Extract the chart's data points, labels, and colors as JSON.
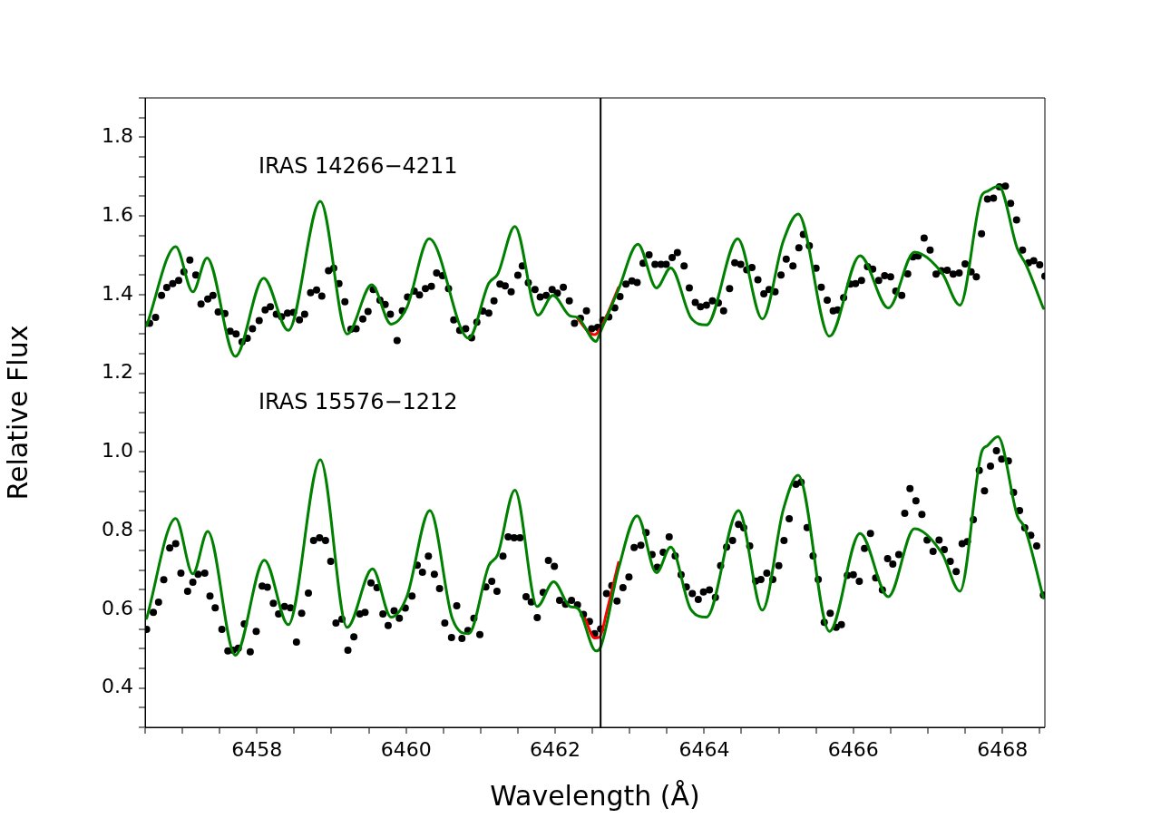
{
  "chart_data": {
    "type": "scatter",
    "xlabel": "Wavelength (Å)",
    "ylabel": "Relative Flux",
    "xlim": [
      6456.5,
      6468.57
    ],
    "ylim": [
      0.3,
      1.9
    ],
    "grid": false,
    "xticks": [
      {
        "value": 6456.5,
        "label": null
      },
      {
        "value": 6457,
        "label": null
      },
      {
        "value": 6457.5,
        "label": null
      },
      6458,
      {
        "value": 6458.5,
        "label": null
      },
      {
        "value": 6459,
        "label": null
      },
      {
        "value": 6459.5,
        "label": null
      },
      6460,
      {
        "value": 6460.5,
        "label": null
      },
      {
        "value": 6461,
        "label": null
      },
      {
        "value": 6461.5,
        "label": null
      },
      6462,
      {
        "value": 6462.5,
        "label": null
      },
      {
        "value": 6463,
        "label": null
      },
      {
        "value": 6463.5,
        "label": null
      },
      6464,
      {
        "value": 6464.5,
        "label": null
      },
      {
        "value": 6465,
        "label": null
      },
      {
        "value": 6465.5,
        "label": null
      },
      6466,
      {
        "value": 6466.5,
        "label": null
      },
      {
        "value": 6467,
        "label": null
      },
      {
        "value": 6467.5,
        "label": null
      },
      6468,
      {
        "value": 6468.5,
        "label": null
      }
    ],
    "yticks": [
      {
        "value": 0.3,
        "label": null
      },
      {
        "value": 0.35,
        "label": null
      },
      0.4,
      {
        "value": 0.45,
        "label": null
      },
      {
        "value": 0.5,
        "label": null
      },
      {
        "value": 0.55,
        "label": null
      },
      0.6,
      {
        "value": 0.65,
        "label": null
      },
      {
        "value": 0.7,
        "label": null
      },
      {
        "value": 0.75,
        "label": null
      },
      0.8,
      {
        "value": 0.85,
        "label": null
      },
      {
        "value": 0.9,
        "label": null
      },
      {
        "value": 0.95,
        "label": null
      },
      {
        "value": 1,
        "label": "1.0"
      },
      {
        "value": 1.05,
        "label": null
      },
      {
        "value": 1.1,
        "label": null
      },
      {
        "value": 1.15,
        "label": null
      },
      1.2,
      {
        "value": 1.25,
        "label": null
      },
      {
        "value": 1.3,
        "label": null
      },
      {
        "value": 1.35,
        "label": null
      },
      1.4,
      {
        "value": 1.45,
        "label": null
      },
      {
        "value": 1.5,
        "label": null
      },
      {
        "value": 1.55,
        "label": null
      },
      1.6,
      {
        "value": 1.65,
        "label": null
      },
      {
        "value": 1.7,
        "label": null
      },
      {
        "value": 1.75,
        "label": null
      },
      1.8,
      {
        "value": 1.85,
        "label": null
      },
      {
        "value": 1.9,
        "label": null
      }
    ],
    "ref_lines": [
      {
        "axis": "x",
        "value": 6462.61,
        "color": "#000000"
      }
    ],
    "annotations": [
      "IRAS 14266−4211",
      "IRAS 15576−1212"
    ],
    "series": [
      {
        "marker": "circle",
        "color": "#000000",
        "x": [
          6456.56,
          6456.64,
          6456.72,
          6456.79,
          6456.87,
          6456.95,
          6457.02,
          6457.1,
          6457.18,
          6457.25,
          6457.34,
          6457.41,
          6457.48,
          6457.57,
          6457.64,
          6457.72,
          6457.8,
          6457.87,
          6457.94,
          6458.03,
          6458.11,
          6458.18,
          6458.26,
          6458.33,
          6458.41,
          6458.49,
          6458.57,
          6458.64,
          6458.72,
          6458.8,
          6458.87,
          6458.96,
          6459.03,
          6459.1,
          6459.18,
          6459.26,
          6459.33,
          6459.42,
          6459.49,
          6459.56,
          6459.65,
          6459.72,
          6459.79,
          6459.88,
          6459.95,
          6460.02,
          6460.11,
          6460.18,
          6460.26,
          6460.34,
          6460.41,
          6460.49,
          6460.57,
          6460.64,
          6460.72,
          6460.8,
          6460.88,
          6460.95,
          6461.03,
          6461.11,
          6461.18,
          6461.26,
          6461.33,
          6461.41,
          6461.5,
          6461.56,
          6461.64,
          6461.73,
          6461.8,
          6461.88,
          6461.96,
          6462.03,
          6462.11,
          6462.19,
          6462.26,
          6462.34,
          6462.42,
          6462.49,
          6462.57,
          6462.64,
          6462.72,
          6462.8,
          6462.87,
          6462.95,
          6463.03,
          6463.1,
          6463.18,
          6463.26,
          6463.34,
          6463.42,
          6463.49,
          6463.57,
          6463.64,
          6463.73,
          6463.8,
          6463.88,
          6463.95,
          6464.03,
          6464.11,
          6464.19,
          6464.26,
          6464.34,
          6464.41,
          6464.49,
          6464.57,
          6464.64,
          6464.72,
          6464.8,
          6464.87,
          6464.95,
          6465.03,
          6465.1,
          6465.19,
          6465.27,
          6465.33,
          6465.41,
          6465.5,
          6465.57,
          6465.65,
          6465.73,
          6465.79,
          6465.87,
          6465.96,
          6466.03,
          6466.11,
          6466.19,
          6466.26,
          6466.34,
          6466.42,
          6466.5,
          6466.57,
          6466.65,
          6466.73,
          6466.8,
          6466.87,
          6466.95,
          6467.03,
          6467.11,
          6467.18,
          6467.26,
          6467.34,
          6467.42,
          6467.5,
          6467.58,
          6467.65,
          6467.72,
          6467.8,
          6467.88,
          6467.96,
          6468.04,
          6468.11,
          6468.19,
          6468.27,
          6468.35,
          6468.42,
          6468.5,
          6468.57
        ],
        "values": [
          1.327,
          1.342,
          1.398,
          1.418,
          1.428,
          1.436,
          1.458,
          1.488,
          1.45,
          1.376,
          1.389,
          1.398,
          1.356,
          1.352,
          1.307,
          1.3,
          1.28,
          1.289,
          1.313,
          1.334,
          1.361,
          1.369,
          1.35,
          1.344,
          1.353,
          1.355,
          1.336,
          1.35,
          1.405,
          1.412,
          1.396,
          1.461,
          1.467,
          1.428,
          1.382,
          1.312,
          1.313,
          1.338,
          1.357,
          1.413,
          1.386,
          1.375,
          1.35,
          1.283,
          1.359,
          1.394,
          1.409,
          1.399,
          1.415,
          1.421,
          1.455,
          1.448,
          1.415,
          1.336,
          1.309,
          1.313,
          1.29,
          1.33,
          1.358,
          1.353,
          1.384,
          1.427,
          1.422,
          1.407,
          1.449,
          1.473,
          1.43,
          1.413,
          1.394,
          1.398,
          1.413,
          1.404,
          1.419,
          1.384,
          1.327,
          1.34,
          1.359,
          1.313,
          1.317,
          1.335,
          1.343,
          1.366,
          1.395,
          1.427,
          1.435,
          1.431,
          1.48,
          1.501,
          1.477,
          1.477,
          1.477,
          1.494,
          1.507,
          1.473,
          1.417,
          1.38,
          1.369,
          1.373,
          1.384,
          1.379,
          1.359,
          1.415,
          1.481,
          1.477,
          1.463,
          1.469,
          1.438,
          1.402,
          1.413,
          1.407,
          1.45,
          1.49,
          1.473,
          1.519,
          1.553,
          1.524,
          1.467,
          1.419,
          1.386,
          1.359,
          1.361,
          1.392,
          1.427,
          1.428,
          1.436,
          1.471,
          1.465,
          1.436,
          1.448,
          1.445,
          1.409,
          1.398,
          1.453,
          1.496,
          1.498,
          1.544,
          1.513,
          1.452,
          1.461,
          1.462,
          1.452,
          1.455,
          1.478,
          1.458,
          1.445,
          1.555,
          1.643,
          1.645,
          1.674,
          1.676,
          1.632,
          1.59,
          1.513,
          1.481,
          1.486,
          1.476,
          1.447
        ]
      },
      {
        "type": "line",
        "color": "#ff0000",
        "x": [
          6462.3,
          6462.45,
          6462.53,
          6462.6,
          6462.7,
          6462.85
        ],
        "values": [
          1.34,
          1.305,
          1.298,
          1.312,
          1.35,
          1.418
        ]
      },
      {
        "type": "line",
        "color": "#008000",
        "x": [
          6456.52,
          6456.91,
          6457.14,
          6457.33,
          6457.71,
          6458.09,
          6458.42,
          6458.85,
          6459.21,
          6459.54,
          6459.8,
          6460.01,
          6460.31,
          6460.84,
          6461.11,
          6461.23,
          6461.46,
          6461.77,
          6461.97,
          6462.2,
          6462.3,
          6462.55,
          6462.6,
          6462.85,
          6463.11,
          6463.36,
          6463.55,
          6463.82,
          6464.03,
          6464.45,
          6464.78,
          6465.06,
          6465.26,
          6465.68,
          6466.09,
          6466.47,
          6466.82,
          6467.19,
          6467.43,
          6467.72,
          6467.8,
          6467.95,
          6468.2,
          6468.32,
          6468.55
        ],
        "values": [
          1.321,
          1.522,
          1.407,
          1.493,
          1.243,
          1.442,
          1.309,
          1.637,
          1.3,
          1.425,
          1.325,
          1.367,
          1.542,
          1.289,
          1.429,
          1.452,
          1.573,
          1.348,
          1.398,
          1.346,
          1.342,
          1.281,
          1.302,
          1.413,
          1.528,
          1.417,
          1.468,
          1.342,
          1.323,
          1.542,
          1.338,
          1.536,
          1.605,
          1.294,
          1.499,
          1.366,
          1.508,
          1.455,
          1.373,
          1.651,
          1.663,
          1.676,
          1.517,
          1.475,
          1.365
        ]
      },
      {
        "marker": "circle",
        "color": "#000000",
        "x": [
          6456.52,
          6456.61,
          6456.68,
          6456.75,
          6456.83,
          6456.91,
          6456.98,
          6457.07,
          6457.14,
          6457.21,
          6457.3,
          6457.37,
          6457.44,
          6457.53,
          6457.61,
          6457.68,
          6457.75,
          6457.83,
          6457.91,
          6457.99,
          6458.07,
          6458.14,
          6458.22,
          6458.29,
          6458.37,
          6458.45,
          6458.53,
          6458.6,
          6458.69,
          6458.76,
          6458.84,
          6458.92,
          6458.99,
          6459.06,
          6459.14,
          6459.22,
          6459.3,
          6459.38,
          6459.45,
          6459.53,
          6459.61,
          6459.69,
          6459.76,
          6459.84,
          6459.91,
          6459.99,
          6460.08,
          6460.15,
          6460.22,
          6460.3,
          6460.38,
          6460.45,
          6460.52,
          6460.61,
          6460.68,
          6460.75,
          6460.83,
          6460.91,
          6460.99,
          6461.07,
          6461.15,
          6461.22,
          6461.3,
          6461.37,
          6461.45,
          6461.53,
          6461.61,
          6461.68,
          6461.76,
          6461.84,
          6461.91,
          6461.99,
          6462.06,
          6462.14,
          6462.22,
          6462.3,
          6462.38,
          6462.46,
          6462.53,
          6462.61,
          6462.69,
          6462.76,
          6462.83,
          6462.91,
          6462.99,
          6463.06,
          6463.15,
          6463.22,
          6463.3,
          6463.37,
          6463.45,
          6463.53,
          6463.61,
          6463.69,
          6463.76,
          6463.84,
          6463.92,
          6463.99,
          6464.07,
          6464.15,
          6464.22,
          6464.3,
          6464.38,
          6464.46,
          6464.53,
          6464.61,
          6464.69,
          6464.76,
          6464.84,
          6464.92,
          6465,
          6465.07,
          6465.14,
          6465.23,
          6465.3,
          6465.38,
          6465.46,
          6465.53,
          6465.61,
          6465.69,
          6465.77,
          6465.84,
          6465.92,
          6466,
          6466.08,
          6466.15,
          6466.23,
          6466.3,
          6466.39,
          6466.46,
          6466.53,
          6466.61,
          6466.69,
          6466.76,
          6466.84,
          6466.92,
          6466.99,
          6467.07,
          6467.15,
          6467.22,
          6467.3,
          6467.38,
          6467.46,
          6467.53,
          6467.61,
          6467.69,
          6467.76,
          6467.84,
          6467.92,
          6467.99,
          6468.08,
          6468.15,
          6468.23,
          6468.3,
          6468.38,
          6468.46,
          6468.55
        ],
        "values": [
          0.549,
          0.592,
          0.618,
          0.675,
          0.756,
          0.767,
          0.692,
          0.646,
          0.669,
          0.689,
          0.692,
          0.634,
          0.604,
          0.549,
          0.494,
          0.496,
          0.501,
          0.563,
          0.492,
          0.544,
          0.659,
          0.656,
          0.615,
          0.588,
          0.607,
          0.604,
          0.517,
          0.59,
          0.641,
          0.775,
          0.782,
          0.775,
          0.722,
          0.565,
          0.575,
          0.496,
          0.53,
          0.588,
          0.592,
          0.667,
          0.655,
          0.588,
          0.559,
          0.596,
          0.577,
          0.603,
          0.634,
          0.712,
          0.694,
          0.735,
          0.689,
          0.653,
          0.565,
          0.528,
          0.609,
          0.526,
          0.546,
          0.577,
          0.536,
          0.657,
          0.671,
          0.646,
          0.735,
          0.784,
          0.782,
          0.782,
          0.632,
          0.619,
          0.579,
          0.643,
          0.724,
          0.709,
          0.623,
          0.613,
          0.623,
          0.611,
          0.587,
          0.569,
          0.538,
          0.55,
          0.64,
          0.66,
          0.621,
          0.655,
          0.682,
          0.757,
          0.763,
          0.795,
          0.739,
          0.707,
          0.745,
          0.784,
          0.736,
          0.688,
          0.657,
          0.64,
          0.625,
          0.644,
          0.649,
          0.63,
          0.711,
          0.758,
          0.775,
          0.816,
          0.807,
          0.761,
          0.672,
          0.676,
          0.692,
          0.676,
          0.711,
          0.775,
          0.83,
          0.918,
          0.923,
          0.808,
          0.736,
          0.676,
          0.567,
          0.59,
          0.554,
          0.561,
          0.686,
          0.688,
          0.671,
          0.755,
          0.793,
          0.68,
          0.649,
          0.729,
          0.715,
          0.739,
          0.844,
          0.907,
          0.876,
          0.841,
          0.776,
          0.747,
          0.776,
          0.752,
          0.722,
          0.696,
          0.767,
          0.772,
          0.828,
          0.953,
          0.901,
          0.964,
          1.003,
          0.982,
          0.977,
          0.897,
          0.851,
          0.807,
          0.788,
          0.761,
          0.636
        ]
      },
      {
        "type": "line",
        "color": "#ff0000",
        "x": [
          6462.4,
          6462.53,
          6462.6,
          6462.69,
          6462.85
        ],
        "values": [
          0.577,
          0.527,
          0.53,
          0.592,
          0.719
        ]
      },
      {
        "type": "line",
        "color": "#008000",
        "x": [
          6456.52,
          6456.91,
          6457.14,
          6457.34,
          6457.71,
          6458.1,
          6458.42,
          6458.85,
          6459.21,
          6459.55,
          6459.8,
          6460.01,
          6460.32,
          6460.62,
          6460.84,
          6461.11,
          6461.23,
          6461.46,
          6461.76,
          6461.98,
          6462.2,
          6462.3,
          6462.55,
          6462.6,
          6462.85,
          6463.1,
          6463.36,
          6463.55,
          6463.82,
          6464.03,
          6464.46,
          6464.78,
          6465.06,
          6465.26,
          6465.68,
          6466.09,
          6466.47,
          6466.82,
          6467.19,
          6467.43,
          6467.72,
          6467.8,
          6467.94,
          6468.2,
          6468.3,
          6468.55
        ],
        "values": [
          0.577,
          0.831,
          0.69,
          0.798,
          0.483,
          0.725,
          0.561,
          0.98,
          0.554,
          0.703,
          0.58,
          0.632,
          0.851,
          0.577,
          0.538,
          0.711,
          0.739,
          0.903,
          0.607,
          0.67,
          0.607,
          0.603,
          0.494,
          0.5,
          0.703,
          0.838,
          0.693,
          0.758,
          0.6,
          0.58,
          0.851,
          0.598,
          0.853,
          0.941,
          0.544,
          0.793,
          0.632,
          0.805,
          0.742,
          0.646,
          0.999,
          1.016,
          1.039,
          0.838,
          0.807,
          0.629
        ]
      }
    ]
  }
}
